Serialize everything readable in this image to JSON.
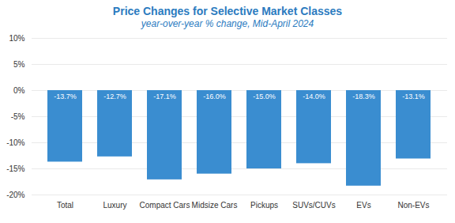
{
  "chart_data": {
    "type": "bar",
    "title": "Price Changes for Selective Market Classes",
    "subtitle": "year-over-year % change, Mid-April 2024",
    "categories": [
      "Total",
      "Luxury",
      "Compact Cars",
      "Midsize Cars",
      "Pickups",
      "SUVs/CUVs",
      "EVs",
      "Non-EVs"
    ],
    "values": [
      -13.7,
      -12.7,
      -17.1,
      -16.0,
      -15.0,
      -14.0,
      -18.3,
      -13.1
    ],
    "value_labels": [
      "-13.7%",
      "-12.7%",
      "-17.1%",
      "-16.0%",
      "-15.0%",
      "-14.0%",
      "-18.3%",
      "-13.1%"
    ],
    "color": "#3a8dd0",
    "ylim": [
      -20,
      10
    ],
    "yticks": [
      {
        "value": -20,
        "label": "-20%"
      },
      {
        "value": -15,
        "label": "-15%"
      },
      {
        "value": -10,
        "label": "-10%"
      },
      {
        "value": -5,
        "label": "-5%"
      },
      {
        "value": 0,
        "label": "0%"
      },
      {
        "value": 5,
        "label": "5%"
      },
      {
        "value": 10,
        "label": "10%"
      }
    ],
    "grid": true,
    "data_labels": true
  }
}
